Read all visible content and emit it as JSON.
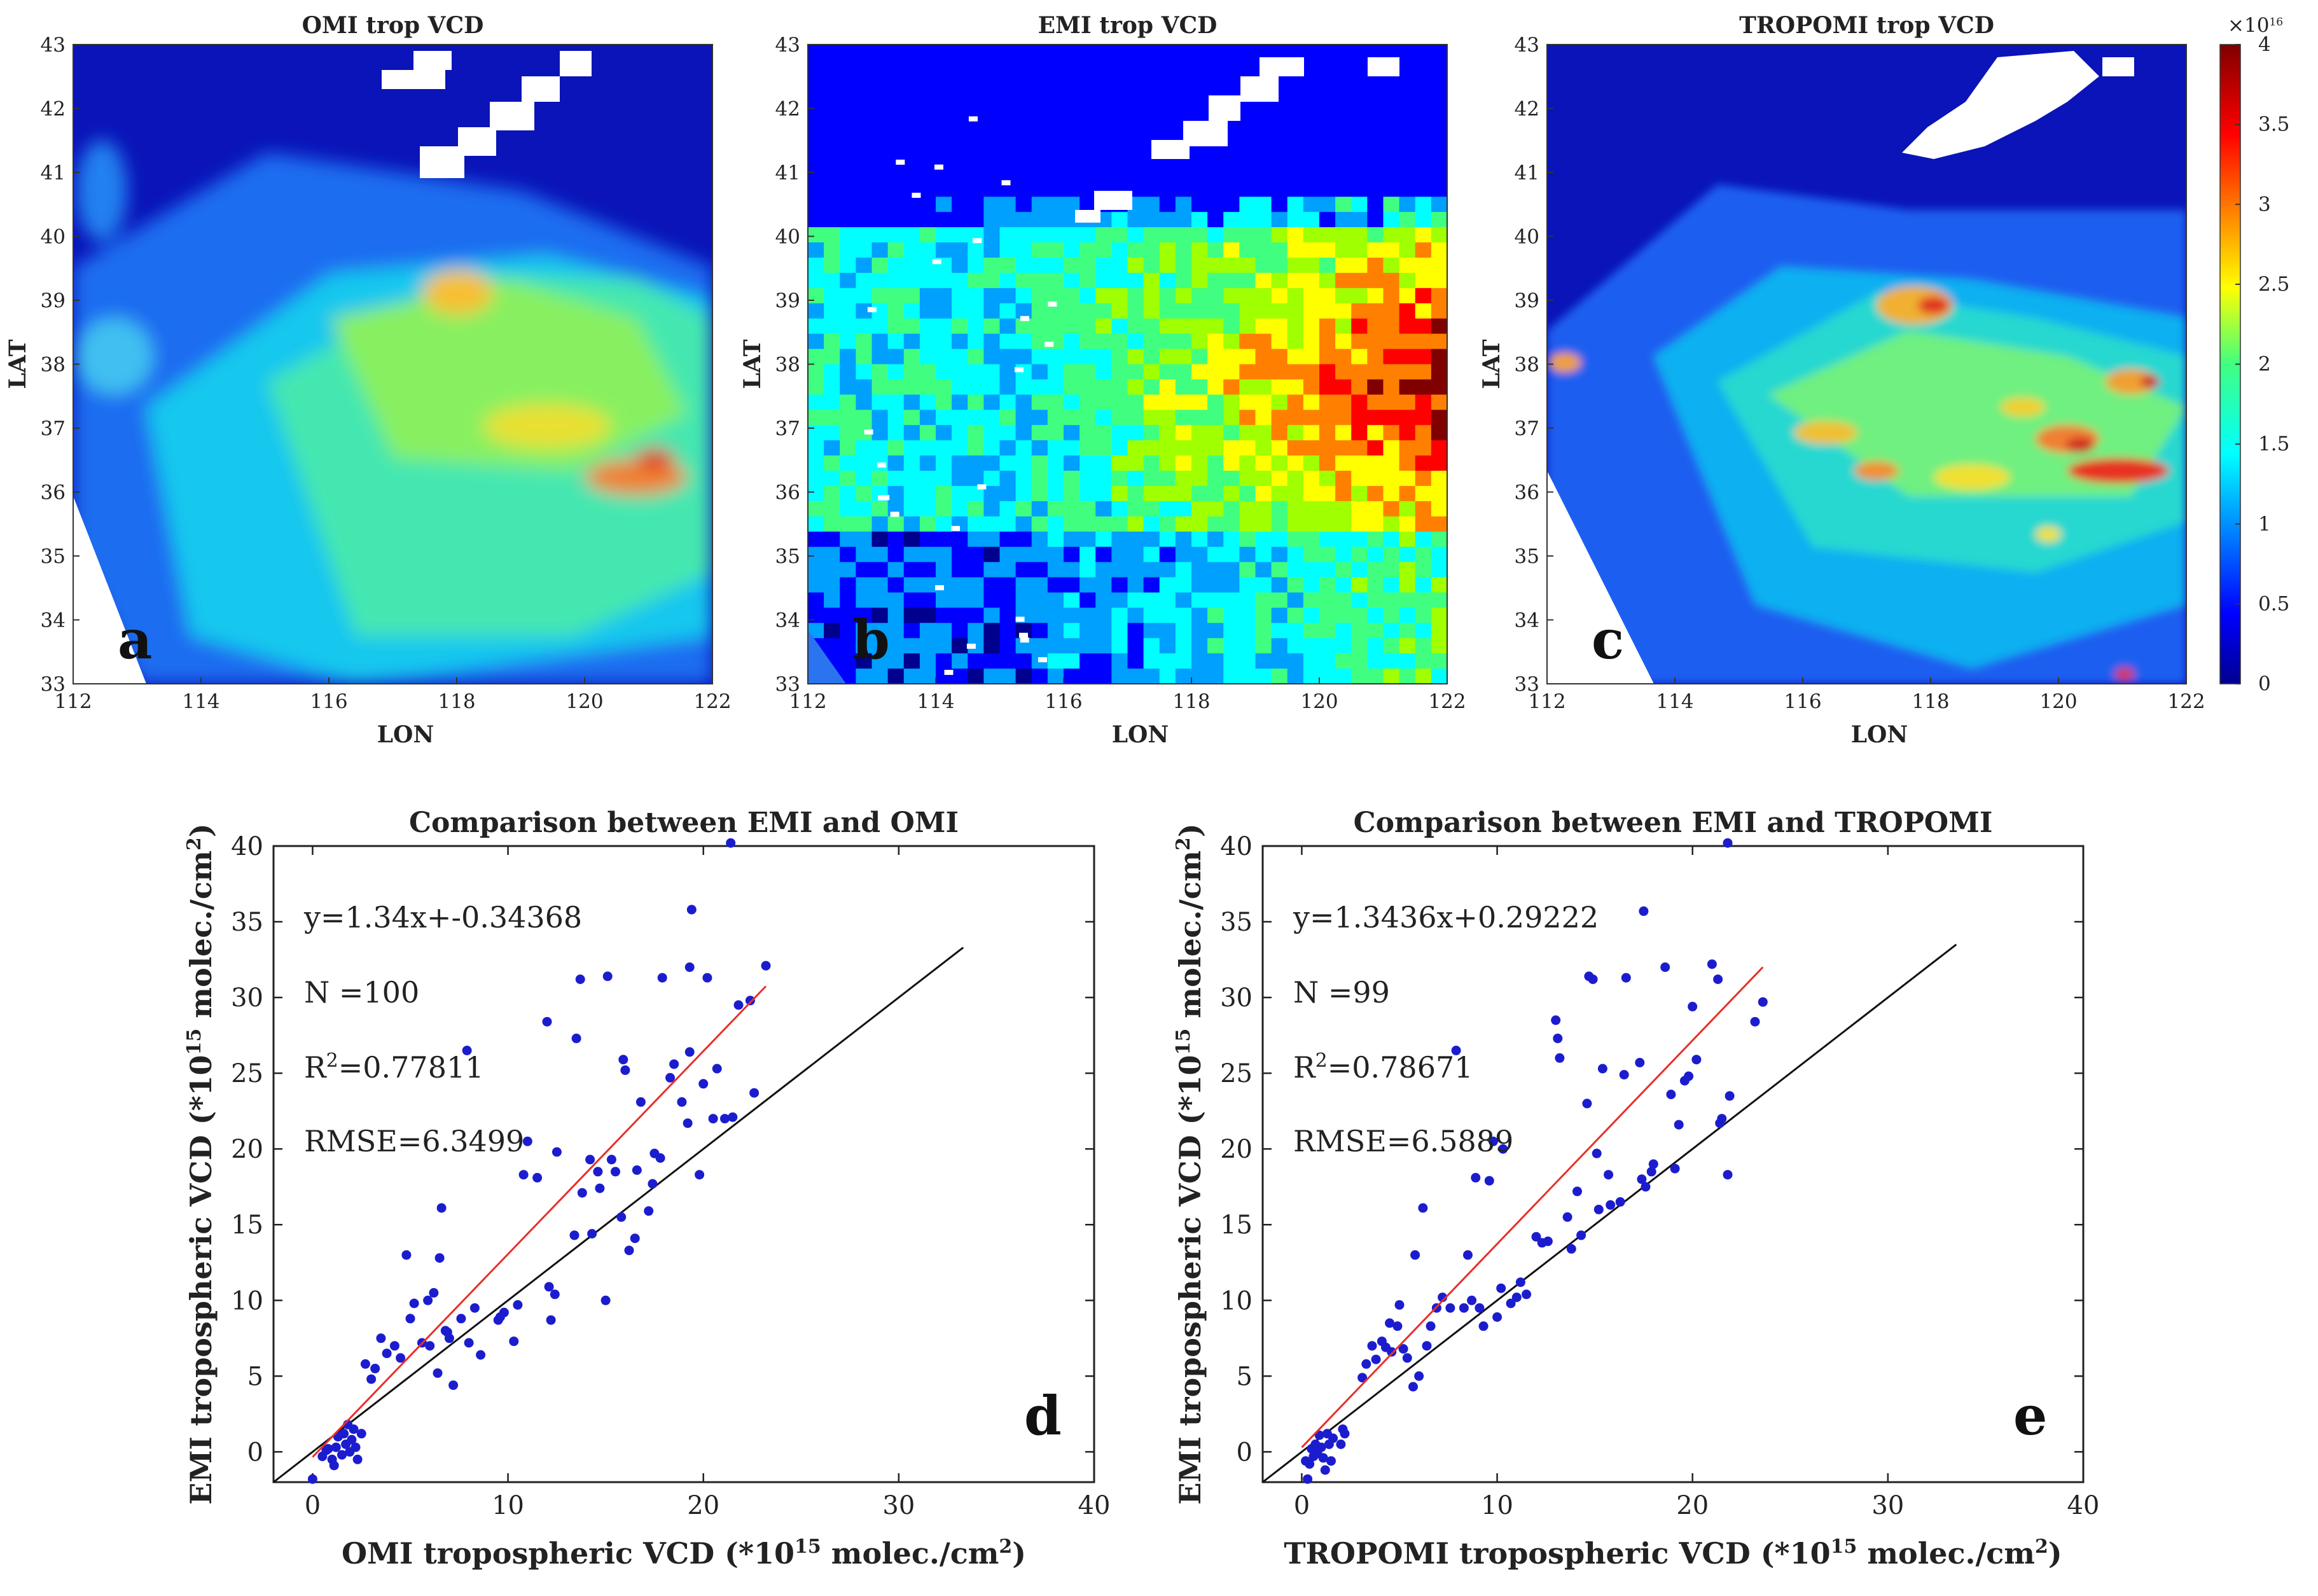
{
  "colors": {
    "background": "#ffffff",
    "point": "#1c1ccf",
    "fit_line": "#e8302a",
    "identity_line": "#111111",
    "colormap": [
      "#00008f",
      "#0000ff",
      "#00a0ff",
      "#00ffff",
      "#40ff80",
      "#a0ff00",
      "#ffff00",
      "#ff8000",
      "#ff0000",
      "#800000"
    ]
  },
  "maps": [
    {
      "title": "OMI trop VCD",
      "letter": "a",
      "xlabel": "LON",
      "ylabel": "LAT"
    },
    {
      "title": "EMI trop VCD",
      "letter": "b",
      "xlabel": "LON",
      "ylabel": "LAT"
    },
    {
      "title": "TROPOMI trop VCD",
      "letter": "c",
      "xlabel": "LON",
      "ylabel": "LAT"
    }
  ],
  "map_axes": {
    "lon_ticks": [
      "112",
      "114",
      "116",
      "118",
      "120",
      "122"
    ],
    "lat_ticks": [
      "33",
      "34",
      "35",
      "36",
      "37",
      "38",
      "39",
      "40",
      "41",
      "42",
      "43"
    ]
  },
  "colorbar": {
    "exponent": "×10",
    "exponent_power": "16",
    "ticks": [
      "0",
      "0.5",
      "1",
      "1.5",
      "2",
      "2.5",
      "3",
      "3.5",
      "4"
    ]
  },
  "chart_data": [
    {
      "type": "heatmap",
      "title": "OMI trop VCD",
      "xlabel": "LON",
      "ylabel": "LAT",
      "xlim": [
        112,
        122
      ],
      "ylim": [
        33,
        43
      ],
      "zlim": [
        0,
        4
      ],
      "z_units": "×10^16 molec./cm²"
    },
    {
      "type": "heatmap",
      "title": "EMI trop VCD",
      "xlabel": "LON",
      "ylabel": "LAT",
      "xlim": [
        112,
        122
      ],
      "ylim": [
        33,
        43
      ],
      "zlim": [
        0,
        4
      ],
      "z_units": "×10^16 molec./cm²"
    },
    {
      "type": "heatmap",
      "title": "TROPOMI trop VCD",
      "xlabel": "LON",
      "ylabel": "LAT",
      "xlim": [
        112,
        122
      ],
      "ylim": [
        33,
        43
      ],
      "zlim": [
        0,
        4
      ],
      "z_units": "×10^16 molec./cm²"
    },
    {
      "type": "scatter",
      "letter": "d",
      "title": "Comparison between EMI and OMI",
      "xlabel": "OMI tropospheric VCD (*10",
      "xlabel_sup": "15",
      "xlabel_end": " molec./cm",
      "xlabel_sup2": "2",
      "ylabel": "EMI tropospheric VCD (*10",
      "ylabel_sup": "15",
      "ylabel_end": " molec./cm",
      "ylabel_sup2": "2",
      "xlim": [
        -2,
        40
      ],
      "ylim": [
        -2,
        40
      ],
      "xticks": [
        "0",
        "10",
        "20",
        "30",
        "40"
      ],
      "yticks": [
        "0",
        "5",
        "10",
        "15",
        "20",
        "25",
        "30",
        "35",
        "40"
      ],
      "stats": {
        "equation": "y=1.34x+-0.34368",
        "n": "N  =100",
        "r2_pre": "R",
        "r2_sup": "2",
        "r2_post": "=0.77811",
        "rmse": "RMSE=6.3499"
      },
      "fit": {
        "slope": 1.34,
        "intercept": -0.34368,
        "x_range": [
          0,
          23.2
        ]
      },
      "identity": {
        "x_range": [
          -2,
          33.3
        ]
      },
      "points": [
        [
          0,
          -1.8
        ],
        [
          0.5,
          -0.3
        ],
        [
          0.8,
          0.2
        ],
        [
          1,
          -0.5
        ],
        [
          1.2,
          0.3
        ],
        [
          1.3,
          1.0
        ],
        [
          1.5,
          -0.2
        ],
        [
          1.7,
          0.5
        ],
        [
          1.8,
          1.8
        ],
        [
          2,
          0.8
        ],
        [
          2.2,
          0.3
        ],
        [
          2.3,
          -0.5
        ],
        [
          1.1,
          -0.9
        ],
        [
          2.5,
          1.2
        ],
        [
          2.7,
          5.8
        ],
        [
          3,
          4.8
        ],
        [
          3.5,
          7.5
        ],
        [
          3.8,
          6.5
        ],
        [
          4.2,
          7.0
        ],
        [
          4.5,
          6.2
        ],
        [
          4.8,
          13
        ],
        [
          5,
          8.8
        ],
        [
          5.2,
          9.8
        ],
        [
          5.6,
          7.2
        ],
        [
          5.9,
          10
        ],
        [
          6,
          7.0
        ],
        [
          6.2,
          10.5
        ],
        [
          6.4,
          5.2
        ],
        [
          6.5,
          12.8
        ],
        [
          6.6,
          16.1
        ],
        [
          6.8,
          8.0
        ],
        [
          7,
          7.5
        ],
        [
          7.2,
          4.4
        ],
        [
          7.6,
          8.8
        ],
        [
          7.9,
          26.5
        ],
        [
          8.3,
          9.5
        ],
        [
          8.6,
          6.4
        ],
        [
          9.5,
          8.7
        ],
        [
          9.6,
          8.9
        ],
        [
          10.3,
          7.3
        ],
        [
          10.5,
          9.7
        ],
        [
          10.8,
          18.3
        ],
        [
          11,
          20.5
        ],
        [
          11.5,
          18.1
        ],
        [
          12,
          28.4
        ],
        [
          12.1,
          10.9
        ],
        [
          12.2,
          8.7
        ],
        [
          12.4,
          10.4
        ],
        [
          12.5,
          19.8
        ],
        [
          13.4,
          14.3
        ],
        [
          13.5,
          27.3
        ],
        [
          13.7,
          31.2
        ],
        [
          13.8,
          17.1
        ],
        [
          14.2,
          19.3
        ],
        [
          14.3,
          14.4
        ],
        [
          14.6,
          18.5
        ],
        [
          14.7,
          17.4
        ],
        [
          15,
          10.0
        ],
        [
          15.1,
          31.4
        ],
        [
          15.3,
          19.3
        ],
        [
          15.5,
          18.5
        ],
        [
          15.8,
          15.5
        ],
        [
          15.9,
          25.9
        ],
        [
          16,
          25.2
        ],
        [
          16.2,
          13.3
        ],
        [
          16.5,
          14.1
        ],
        [
          16.6,
          18.6
        ],
        [
          16.8,
          23.1
        ],
        [
          17.2,
          15.9
        ],
        [
          17.4,
          17.7
        ],
        [
          17.5,
          19.7
        ],
        [
          17.8,
          19.4
        ],
        [
          17.9,
          31.3
        ],
        [
          18.3,
          24.7
        ],
        [
          18.5,
          25.6
        ],
        [
          18.9,
          23.1
        ],
        [
          19.2,
          21.7
        ],
        [
          19.3,
          26.4
        ],
        [
          19.4,
          35.8
        ],
        [
          19.3,
          32.0
        ],
        [
          19.8,
          18.3
        ],
        [
          20,
          24.3
        ],
        [
          20.2,
          31.3
        ],
        [
          20.5,
          22.0
        ],
        [
          20.7,
          25.3
        ],
        [
          21.1,
          22.0
        ],
        [
          21.4,
          40.2
        ],
        [
          21.5,
          22.1
        ],
        [
          21.8,
          29.5
        ],
        [
          22.4,
          29.8
        ],
        [
          22.6,
          23.7
        ],
        [
          23.2,
          32.1
        ],
        [
          1.6,
          1.2
        ],
        [
          0.7,
          0.1
        ],
        [
          1.9,
          0.0
        ],
        [
          2.1,
          1.5
        ],
        [
          3.2,
          5.5
        ],
        [
          8.0,
          7.2
        ],
        [
          9.8,
          9.2
        ],
        [
          6.9,
          7.9
        ]
      ]
    },
    {
      "type": "scatter",
      "letter": "e",
      "title": "Comparison between EMI and TROPOMI",
      "xlabel": "TROPOMI tropospheric VCD (*10",
      "xlabel_sup": "15",
      "xlabel_end": " molec./cm",
      "xlabel_sup2": "2",
      "ylabel": "EMI tropospheric VCD (*10",
      "ylabel_sup": "15",
      "ylabel_end": " molec./cm",
      "ylabel_sup2": "2",
      "xlim": [
        -2,
        40
      ],
      "ylim": [
        -2,
        40
      ],
      "xticks": [
        "0",
        "10",
        "20",
        "30",
        "40"
      ],
      "yticks": [
        "0",
        "5",
        "10",
        "15",
        "20",
        "25",
        "30",
        "35",
        "40"
      ],
      "stats": {
        "equation": "y=1.3436x+0.29222",
        "n": "N  =99",
        "r2_pre": "R",
        "r2_sup": "2",
        "r2_post": "=0.78671",
        "rmse": "RMSE=6.5889"
      },
      "fit": {
        "slope": 1.3436,
        "intercept": 0.29222,
        "x_range": [
          0,
          23.6
        ]
      },
      "identity": {
        "x_range": [
          -2,
          33.5
        ]
      },
      "points": [
        [
          0.3,
          -1.8
        ],
        [
          0.4,
          -0.8
        ],
        [
          0.5,
          0.2
        ],
        [
          0.6,
          -0.3
        ],
        [
          0.7,
          0.5
        ],
        [
          0.8,
          -0.1
        ],
        [
          0.9,
          1.1
        ],
        [
          1.0,
          0.3
        ],
        [
          1.1,
          -0.4
        ],
        [
          1.3,
          1.2
        ],
        [
          1.4,
          0.5
        ],
        [
          2.0,
          0.5
        ],
        [
          2.1,
          1.5
        ],
        [
          3.1,
          4.9
        ],
        [
          3.3,
          5.8
        ],
        [
          3.6,
          7.0
        ],
        [
          3.8,
          6.1
        ],
        [
          4.1,
          7.3
        ],
        [
          4.3,
          6.9
        ],
        [
          4.5,
          8.5
        ],
        [
          4.6,
          6.6
        ],
        [
          4.9,
          8.3
        ],
        [
          5.0,
          9.7
        ],
        [
          5.4,
          6.2
        ],
        [
          5.7,
          4.3
        ],
        [
          5.8,
          13.0
        ],
        [
          6.0,
          5.0
        ],
        [
          6.2,
          16.1
        ],
        [
          6.4,
          7.0
        ],
        [
          6.6,
          8.3
        ],
        [
          6.9,
          9.5
        ],
        [
          7.2,
          10.2
        ],
        [
          7.6,
          9.5
        ],
        [
          7.9,
          26.5
        ],
        [
          8.3,
          9.5
        ],
        [
          8.5,
          13.0
        ],
        [
          8.9,
          18.1
        ],
        [
          9.1,
          9.5
        ],
        [
          9.3,
          8.3
        ],
        [
          9.6,
          17.9
        ],
        [
          9.8,
          20.5
        ],
        [
          10.0,
          8.9
        ],
        [
          10.3,
          20.0
        ],
        [
          10.7,
          9.8
        ],
        [
          11.0,
          10.2
        ],
        [
          11.2,
          11.2
        ],
        [
          11.5,
          10.4
        ],
        [
          12.3,
          13.8
        ],
        [
          12.6,
          13.9
        ],
        [
          13.0,
          28.5
        ],
        [
          13.1,
          27.3
        ],
        [
          13.2,
          26.0
        ],
        [
          13.6,
          15.5
        ],
        [
          13.8,
          13.4
        ],
        [
          14.1,
          17.2
        ],
        [
          14.3,
          14.3
        ],
        [
          14.6,
          23.0
        ],
        [
          14.7,
          31.4
        ],
        [
          14.9,
          31.2
        ],
        [
          15.1,
          19.7
        ],
        [
          15.2,
          16.0
        ],
        [
          15.4,
          25.3
        ],
        [
          15.7,
          18.3
        ],
        [
          16.3,
          16.5
        ],
        [
          16.5,
          24.9
        ],
        [
          16.6,
          31.3
        ],
        [
          17.3,
          25.7
        ],
        [
          17.4,
          18.0
        ],
        [
          17.6,
          17.5
        ],
        [
          17.9,
          18.5
        ],
        [
          18.0,
          19.0
        ],
        [
          18.6,
          32.0
        ],
        [
          18.9,
          23.6
        ],
        [
          19.3,
          21.6
        ],
        [
          19.6,
          24.5
        ],
        [
          19.8,
          24.8
        ],
        [
          20.0,
          29.4
        ],
        [
          20.2,
          25.9
        ],
        [
          21.0,
          32.2
        ],
        [
          21.3,
          31.2
        ],
        [
          21.4,
          21.7
        ],
        [
          21.5,
          22.0
        ],
        [
          21.8,
          18.3
        ],
        [
          21.9,
          23.5
        ],
        [
          17.5,
          35.7
        ],
        [
          21.8,
          40.2
        ],
        [
          23.2,
          28.4
        ],
        [
          23.6,
          29.7
        ],
        [
          2.2,
          1.2
        ],
        [
          1.6,
          0.9
        ],
        [
          0.2,
          -0.6
        ],
        [
          5.2,
          6.8
        ],
        [
          12.0,
          14.2
        ],
        [
          8.7,
          10.0
        ],
        [
          10.2,
          10.8
        ],
        [
          15.8,
          16.3
        ],
        [
          19.1,
          18.7
        ],
        [
          1.2,
          -1.2
        ],
        [
          1.5,
          -0.6
        ]
      ]
    }
  ]
}
